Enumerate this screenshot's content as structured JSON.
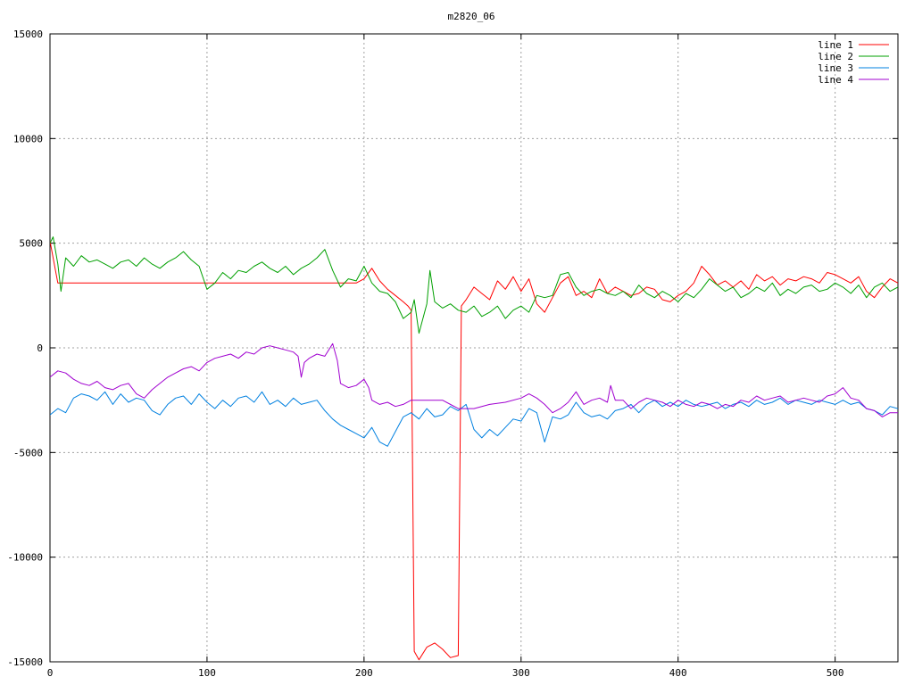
{
  "chart_data": {
    "type": "line",
    "title": "m2820_06",
    "xlabel": "",
    "ylabel": "",
    "xlim": [
      0,
      540
    ],
    "ylim": [
      -15000,
      15000
    ],
    "xticks": [
      0,
      100,
      200,
      300,
      400,
      500
    ],
    "yticks": [
      -15000,
      -10000,
      -5000,
      0,
      5000,
      10000,
      15000
    ],
    "grid": true,
    "legend_position": "top-right",
    "series": [
      {
        "name": "line 1",
        "color": "#ff0000",
        "x": [
          0,
          5,
          10,
          50,
          100,
          150,
          195,
          200,
          205,
          210,
          215,
          220,
          225,
          228,
          230,
          232,
          235,
          240,
          245,
          250,
          255,
          260,
          262,
          265,
          270,
          275,
          280,
          285,
          290,
          295,
          300,
          305,
          310,
          315,
          320,
          325,
          330,
          335,
          340,
          345,
          350,
          355,
          360,
          365,
          370,
          375,
          380,
          385,
          390,
          395,
          400,
          405,
          410,
          415,
          420,
          425,
          430,
          435,
          440,
          445,
          450,
          455,
          460,
          465,
          470,
          475,
          480,
          485,
          490,
          495,
          500,
          505,
          510,
          515,
          520,
          525,
          530,
          535,
          540
        ],
        "values": [
          5100,
          3100,
          3100,
          3100,
          3100,
          3100,
          3100,
          3300,
          3800,
          3200,
          2800,
          2500,
          2200,
          2000,
          1800,
          -14500,
          -14900,
          -14300,
          -14100,
          -14400,
          -14800,
          -14700,
          2000,
          2300,
          2900,
          2600,
          2300,
          3200,
          2800,
          3400,
          2700,
          3300,
          2100,
          1700,
          2400,
          3100,
          3400,
          2500,
          2700,
          2400,
          3300,
          2600,
          2900,
          2700,
          2500,
          2600,
          2900,
          2800,
          2300,
          2200,
          2500,
          2700,
          3100,
          3900,
          3500,
          3000,
          3200,
          2900,
          3200,
          2800,
          3500,
          3200,
          3400,
          3000,
          3300,
          3200,
          3400,
          3300,
          3100,
          3600,
          3500,
          3300,
          3100,
          3400,
          2700,
          2400,
          2900,
          3300,
          3100
        ]
      },
      {
        "name": "line 2",
        "color": "#00a000",
        "x": [
          0,
          2,
          5,
          7,
          10,
          15,
          20,
          25,
          30,
          35,
          40,
          45,
          50,
          55,
          60,
          65,
          70,
          75,
          80,
          85,
          90,
          95,
          100,
          105,
          110,
          115,
          120,
          125,
          130,
          135,
          140,
          145,
          150,
          155,
          160,
          165,
          170,
          175,
          180,
          185,
          190,
          195,
          200,
          205,
          210,
          215,
          220,
          225,
          230,
          232,
          235,
          240,
          242,
          245,
          250,
          255,
          260,
          265,
          270,
          275,
          280,
          285,
          290,
          295,
          300,
          305,
          310,
          315,
          320,
          325,
          330,
          335,
          340,
          345,
          350,
          355,
          360,
          365,
          370,
          375,
          380,
          385,
          390,
          395,
          400,
          405,
          410,
          415,
          420,
          425,
          430,
          435,
          440,
          445,
          450,
          455,
          460,
          465,
          470,
          475,
          480,
          485,
          490,
          495,
          500,
          505,
          510,
          515,
          520,
          525,
          530,
          535,
          540
        ],
        "values": [
          5000,
          5300,
          4000,
          2700,
          4300,
          3900,
          4400,
          4100,
          4200,
          4000,
          3800,
          4100,
          4200,
          3900,
          4300,
          4000,
          3800,
          4100,
          4300,
          4600,
          4200,
          3900,
          2800,
          3100,
          3600,
          3300,
          3700,
          3600,
          3900,
          4100,
          3800,
          3600,
          3900,
          3500,
          3800,
          4000,
          4300,
          4700,
          3700,
          2900,
          3300,
          3200,
          3900,
          3100,
          2700,
          2600,
          2200,
          1400,
          1700,
          2300,
          700,
          2100,
          3700,
          2200,
          1900,
          2100,
          1800,
          1700,
          2000,
          1500,
          1700,
          2000,
          1400,
          1800,
          2000,
          1700,
          2500,
          2400,
          2500,
          3500,
          3600,
          2900,
          2500,
          2700,
          2800,
          2600,
          2500,
          2700,
          2400,
          3000,
          2600,
          2400,
          2700,
          2500,
          2200,
          2600,
          2400,
          2800,
          3300,
          3000,
          2700,
          2900,
          2400,
          2600,
          2900,
          2700,
          3100,
          2500,
          2800,
          2600,
          2900,
          3000,
          2700,
          2800,
          3100,
          2900,
          2600,
          3000,
          2400,
          2900,
          3100,
          2700,
          2900
        ]
      },
      {
        "name": "line 3",
        "color": "#0080e0",
        "x": [
          0,
          5,
          10,
          15,
          20,
          25,
          30,
          35,
          40,
          45,
          50,
          55,
          60,
          65,
          70,
          75,
          80,
          85,
          90,
          95,
          100,
          105,
          110,
          115,
          120,
          125,
          130,
          135,
          140,
          145,
          150,
          155,
          160,
          165,
          170,
          175,
          180,
          185,
          190,
          195,
          200,
          205,
          210,
          215,
          220,
          225,
          230,
          235,
          240,
          245,
          250,
          255,
          260,
          265,
          270,
          275,
          280,
          285,
          290,
          295,
          300,
          305,
          310,
          315,
          320,
          325,
          330,
          335,
          340,
          345,
          350,
          355,
          360,
          365,
          370,
          375,
          380,
          385,
          390,
          395,
          400,
          405,
          410,
          415,
          420,
          425,
          430,
          435,
          440,
          445,
          450,
          455,
          460,
          465,
          470,
          475,
          480,
          485,
          490,
          495,
          500,
          505,
          510,
          515,
          520,
          525,
          530,
          535,
          540
        ],
        "values": [
          -3200,
          -2900,
          -3100,
          -2400,
          -2200,
          -2300,
          -2500,
          -2100,
          -2700,
          -2200,
          -2600,
          -2400,
          -2500,
          -3000,
          -3200,
          -2700,
          -2400,
          -2300,
          -2700,
          -2200,
          -2600,
          -2900,
          -2500,
          -2800,
          -2400,
          -2300,
          -2600,
          -2100,
          -2700,
          -2500,
          -2800,
          -2400,
          -2700,
          -2600,
          -2500,
          -3000,
          -3400,
          -3700,
          -3900,
          -4100,
          -4300,
          -3800,
          -4500,
          -4700,
          -4000,
          -3300,
          -3100,
          -3400,
          -2900,
          -3300,
          -3200,
          -2800,
          -3000,
          -2700,
          -3900,
          -4300,
          -3900,
          -4200,
          -3800,
          -3400,
          -3500,
          -2900,
          -3100,
          -4500,
          -3300,
          -3400,
          -3200,
          -2600,
          -3100,
          -3300,
          -3200,
          -3400,
          -3000,
          -2900,
          -2700,
          -3100,
          -2700,
          -2500,
          -2800,
          -2600,
          -2800,
          -2500,
          -2700,
          -2800,
          -2700,
          -2600,
          -2900,
          -2700,
          -2600,
          -2800,
          -2500,
          -2700,
          -2600,
          -2400,
          -2700,
          -2500,
          -2600,
          -2700,
          -2500,
          -2600,
          -2700,
          -2500,
          -2700,
          -2600,
          -2900,
          -3000,
          -3200,
          -2800,
          -2900
        ]
      },
      {
        "name": "line 4",
        "color": "#a000d0",
        "x": [
          0,
          5,
          10,
          15,
          20,
          25,
          30,
          35,
          40,
          45,
          50,
          55,
          60,
          65,
          70,
          75,
          80,
          85,
          90,
          95,
          100,
          105,
          110,
          115,
          120,
          125,
          130,
          135,
          140,
          145,
          150,
          155,
          158,
          160,
          162,
          165,
          170,
          175,
          180,
          183,
          185,
          190,
          195,
          200,
          203,
          205,
          210,
          215,
          220,
          225,
          230,
          240,
          250,
          260,
          270,
          280,
          290,
          300,
          305,
          310,
          315,
          320,
          325,
          330,
          335,
          340,
          345,
          350,
          355,
          357,
          360,
          365,
          370,
          375,
          380,
          385,
          390,
          395,
          400,
          405,
          410,
          415,
          420,
          425,
          430,
          435,
          440,
          445,
          450,
          455,
          460,
          465,
          470,
          475,
          480,
          485,
          490,
          495,
          500,
          505,
          510,
          515,
          520,
          525,
          530,
          535,
          540
        ],
        "values": [
          -1400,
          -1100,
          -1200,
          -1500,
          -1700,
          -1800,
          -1600,
          -1900,
          -2000,
          -1800,
          -1700,
          -2200,
          -2400,
          -2000,
          -1700,
          -1400,
          -1200,
          -1000,
          -900,
          -1100,
          -700,
          -500,
          -400,
          -300,
          -500,
          -200,
          -300,
          0,
          100,
          0,
          -100,
          -200,
          -400,
          -1400,
          -700,
          -500,
          -300,
          -400,
          200,
          -600,
          -1700,
          -1900,
          -1800,
          -1500,
          -1900,
          -2500,
          -2700,
          -2600,
          -2800,
          -2700,
          -2500,
          -2500,
          -2500,
          -2900,
          -2900,
          -2700,
          -2600,
          -2400,
          -2200,
          -2400,
          -2700,
          -3100,
          -2900,
          -2600,
          -2100,
          -2700,
          -2500,
          -2400,
          -2600,
          -1800,
          -2500,
          -2500,
          -2900,
          -2600,
          -2400,
          -2500,
          -2600,
          -2800,
          -2500,
          -2700,
          -2800,
          -2600,
          -2700,
          -2900,
          -2700,
          -2800,
          -2500,
          -2600,
          -2300,
          -2500,
          -2400,
          -2300,
          -2600,
          -2500,
          -2400,
          -2500,
          -2600,
          -2300,
          -2200,
          -1900,
          -2400,
          -2500,
          -2900,
          -3000,
          -3300,
          -3100,
          -3100
        ]
      }
    ]
  }
}
